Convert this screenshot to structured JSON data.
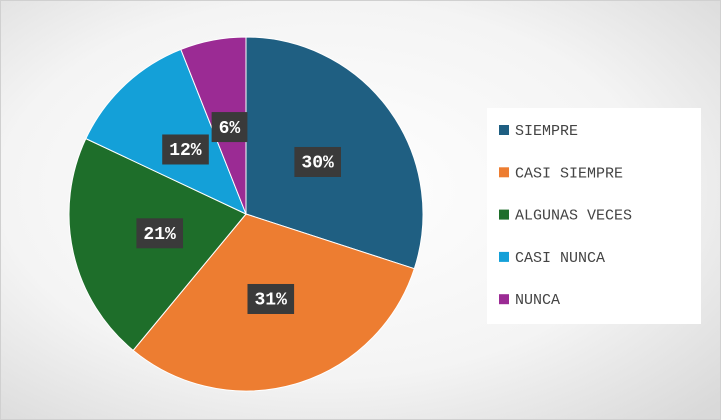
{
  "chart_data": {
    "type": "pie",
    "categories": [
      "SIEMPRE",
      "CASI SIEMPRE",
      "ALGUNAS VECES",
      "CASI NUNCA",
      "NUNCA"
    ],
    "values": [
      30,
      31,
      21,
      12,
      6
    ],
    "value_labels": [
      "30%",
      "31%",
      "21%",
      "12%",
      "6%"
    ],
    "colors": [
      "#1f5f82",
      "#ed7d31",
      "#1e6e2a",
      "#14a0d8",
      "#9b2b94"
    ],
    "legend": "right"
  }
}
